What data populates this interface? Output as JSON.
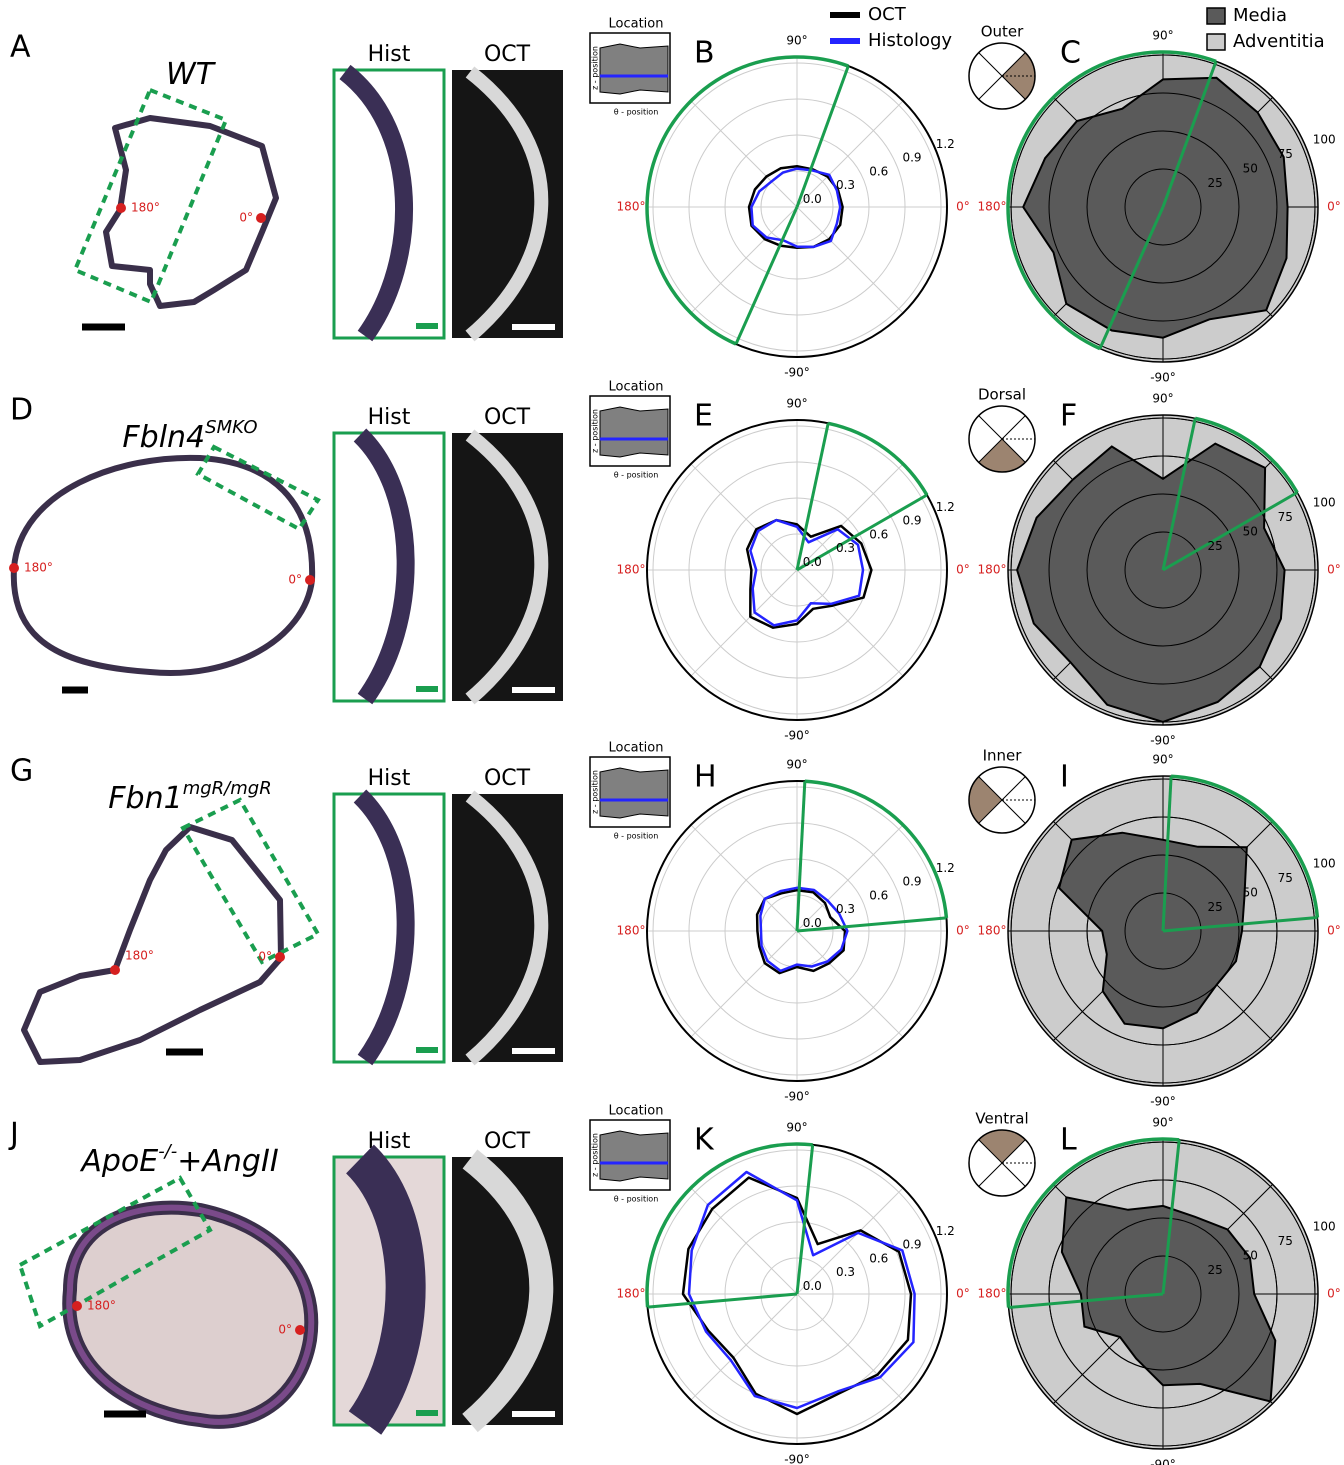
{
  "legends": {
    "thickness": [
      {
        "name": "OCT",
        "color": "#000000"
      },
      {
        "name": "Histology",
        "color": "#2424ff"
      }
    ],
    "layers": [
      {
        "name": "Media",
        "color": "#5a5a5a"
      },
      {
        "name": "Adventitia",
        "color": "#cccccc"
      }
    ]
  },
  "rows": [
    {
      "letter": "A",
      "genotype": {
        "text": "WT"
      },
      "histology_image": {
        "left_label": "180°",
        "right_label": "0°"
      },
      "hist_label": "Hist",
      "oct_label": "OCT",
      "location": {
        "title": "Location",
        "z_label": "z - position",
        "theta_label": "θ - position"
      },
      "orientation": "Outer",
      "thickness_polar": {
        "type": "polar",
        "letter": "B",
        "rlim": [
          0,
          1.25
        ],
        "rticks": [
          {
            "value": 0,
            "label": "0.0"
          },
          0.3,
          0.6,
          0.9,
          1.2
        ],
        "angle_ticks": [
          {
            "value": 90,
            "label": "90°"
          },
          {
            "value": 180,
            "label": "180°"
          },
          {
            "value": -90,
            "label": "-90°"
          },
          {
            "value": 0,
            "label": "0°"
          }
        ],
        "sector": [
          70,
          246
        ],
        "theta": [
          0,
          22.5,
          45,
          67.5,
          90,
          112.5,
          135,
          157.5,
          180,
          202.5,
          225,
          247.5,
          270,
          292.5,
          315,
          337.5
        ],
        "series": [
          {
            "values": [
              0.38,
              0.37,
              0.36,
              0.34,
              0.34,
              0.35,
              0.36,
              0.38,
              0.4,
              0.41,
              0.38,
              0.35,
              0.34,
              0.36,
              0.38,
              0.39
            ]
          },
          {
            "values": [
              0.36,
              0.36,
              0.38,
              0.33,
              0.32,
              0.31,
              0.3,
              0.34,
              0.38,
              0.4,
              0.36,
              0.3,
              0.33,
              0.36,
              0.4,
              0.36
            ]
          }
        ]
      },
      "layer_polar": {
        "type": "polar",
        "letter": "C",
        "rlim": [
          0,
          102
        ],
        "rticks": [
          25,
          50,
          75,
          100
        ],
        "angle_ticks": [
          {
            "value": 90,
            "label": "90°"
          },
          {
            "value": 180,
            "label": "180°"
          },
          {
            "value": -90,
            "label": "-90°"
          },
          {
            "value": 0,
            "label": "0°"
          }
        ],
        "sector": [
          70,
          246
        ],
        "theta": [
          0,
          22.5,
          45,
          67.5,
          90,
          112.5,
          135,
          157.5,
          180,
          202.5,
          225,
          247.5,
          270,
          292.5,
          315,
          337.5
        ],
        "series": [
          {
            "values": [
              82,
              86,
              88,
              92,
              84,
              70,
              80,
              84,
              92,
              78,
              90,
              88,
              86,
              80,
              96,
              88
            ]
          }
        ]
      }
    },
    {
      "letter": "D",
      "genotype": {
        "text": "Fbln4",
        "sup": "SMKO"
      },
      "histology_image": {
        "left_label": "180°",
        "right_label": "0°"
      },
      "hist_label": "Hist",
      "oct_label": "OCT",
      "location": {
        "title": "Location",
        "z_label": "z - position",
        "theta_label": "θ - position"
      },
      "orientation": "Dorsal",
      "thickness_polar": {
        "type": "polar",
        "letter": "E",
        "rlim": [
          0,
          1.25
        ],
        "rticks": [
          {
            "value": 0,
            "label": "0.0"
          },
          0.3,
          0.6,
          0.9,
          1.2
        ],
        "angle_ticks": [
          {
            "value": 90,
            "label": "90°"
          },
          {
            "value": 180,
            "label": "180°"
          },
          {
            "value": -90,
            "label": "-90°"
          },
          {
            "value": 0,
            "label": "0°"
          }
        ],
        "sector": [
          30,
          78
        ],
        "theta": [
          0,
          22.5,
          45,
          67.5,
          90,
          112.5,
          135,
          157.5,
          180,
          202.5,
          225,
          247.5,
          270,
          292.5,
          315,
          337.5
        ],
        "series": [
          {
            "values": [
              0.62,
              0.58,
              0.52,
              0.3,
              0.38,
              0.45,
              0.48,
              0.45,
              0.38,
              0.42,
              0.55,
              0.52,
              0.45,
              0.35,
              0.42,
              0.6
            ]
          },
          {
            "values": [
              0.55,
              0.55,
              0.48,
              0.25,
              0.36,
              0.45,
              0.46,
              0.42,
              0.34,
              0.4,
              0.5,
              0.5,
              0.42,
              0.3,
              0.4,
              0.56
            ]
          }
        ]
      },
      "layer_polar": {
        "type": "polar",
        "letter": "F",
        "rlim": [
          0,
          102
        ],
        "rticks": [
          25,
          50,
          75,
          100
        ],
        "angle_ticks": [
          {
            "value": 90,
            "label": "90°"
          },
          {
            "value": 180,
            "label": "180°"
          },
          {
            "value": -90,
            "label": "-90°"
          },
          {
            "value": 0,
            "label": "0°"
          }
        ],
        "sector": [
          30,
          78
        ],
        "theta": [
          0,
          22.5,
          45,
          67.5,
          90,
          112.5,
          135,
          157.5,
          180,
          202.5,
          225,
          247.5,
          270,
          292.5,
          315,
          337.5
        ],
        "series": [
          {
            "values": [
              80,
              72,
              95,
              90,
              60,
              88,
              84,
              90,
              96,
              92,
              86,
              96,
              100,
              94,
              90,
              84
            ]
          }
        ]
      }
    },
    {
      "letter": "G",
      "genotype": {
        "text": "Fbn1",
        "sup": "mgR/mgR"
      },
      "histology_image": {
        "left_label": "180°",
        "right_label": "0°"
      },
      "hist_label": "Hist",
      "oct_label": "OCT",
      "location": {
        "title": "Location",
        "z_label": "z - position",
        "theta_label": "θ - position"
      },
      "orientation": "Inner",
      "thickness_polar": {
        "type": "polar",
        "letter": "H",
        "rlim": [
          0,
          1.25
        ],
        "rticks": [
          {
            "value": 0,
            "label": "0.0"
          },
          0.3,
          0.6,
          0.9,
          1.2
        ],
        "angle_ticks": [
          {
            "value": 90,
            "label": "90°"
          },
          {
            "value": 180,
            "label": "180°"
          },
          {
            "value": -90,
            "label": "-90°"
          },
          {
            "value": 0,
            "label": "0°"
          }
        ],
        "sector": [
          5,
          87
        ],
        "theta": [
          0,
          22.5,
          45,
          67.5,
          90,
          112.5,
          135,
          157.5,
          180,
          202.5,
          225,
          247.5,
          270,
          292.5,
          315,
          337.5
        ],
        "series": [
          {
            "values": [
              0.4,
              0.3,
              0.33,
              0.35,
              0.34,
              0.34,
              0.38,
              0.36,
              0.33,
              0.34,
              0.38,
              0.38,
              0.3,
              0.36,
              0.38,
              0.42
            ]
          },
          {
            "values": [
              0.42,
              0.38,
              0.36,
              0.37,
              0.36,
              0.36,
              0.38,
              0.33,
              0.3,
              0.32,
              0.35,
              0.36,
              0.28,
              0.32,
              0.36,
              0.4
            ]
          }
        ]
      },
      "layer_polar": {
        "type": "polar",
        "letter": "I",
        "rlim": [
          0,
          102
        ],
        "rticks": [
          25,
          50,
          75,
          100
        ],
        "angle_ticks": [
          {
            "value": 90,
            "label": "90°"
          },
          {
            "value": 180,
            "label": "180°"
          },
          {
            "value": -90,
            "label": "-90°"
          },
          {
            "value": 0,
            "label": "0°"
          }
        ],
        "sector": [
          5,
          87
        ],
        "theta": [
          0,
          22.5,
          45,
          67.5,
          90,
          112.5,
          135,
          157.5,
          180,
          202.5,
          225,
          247.5,
          270,
          292.5,
          315,
          337.5
        ],
        "series": [
          {
            "values": [
              52,
              58,
              78,
              60,
              60,
              70,
              85,
              74,
              40,
              40,
              56,
              66,
              64,
              58,
              50,
              52
            ]
          }
        ]
      }
    },
    {
      "letter": "J",
      "genotype": {
        "text": "ApoE",
        "sup": "-/-",
        "suffix": "+AngII"
      },
      "histology_image": {
        "left_label": "180°",
        "right_label": "0°"
      },
      "hist_label": "Hist",
      "oct_label": "OCT",
      "location": {
        "title": "Location",
        "z_label": "z - position",
        "theta_label": "θ - position"
      },
      "orientation": "Ventral",
      "thickness_polar": {
        "type": "polar",
        "letter": "K",
        "rlim": [
          0,
          1.25
        ],
        "rticks": [
          {
            "value": 0,
            "label": "0.0"
          },
          0.3,
          0.6,
          0.9,
          1.2
        ],
        "angle_ticks": [
          {
            "value": 90,
            "label": "90°"
          },
          {
            "value": 180,
            "label": "180°"
          },
          {
            "value": -90,
            "label": "-90°"
          },
          {
            "value": 0,
            "label": "0°"
          }
        ],
        "sector": [
          84,
          185
        ],
        "theta": [
          0,
          22.5,
          45,
          67.5,
          90,
          112.5,
          135,
          157.5,
          180,
          202.5,
          225,
          247.5,
          270,
          292.5,
          315,
          337.5
        ],
        "series": [
          {
            "values": [
              0.95,
              0.92,
              0.75,
              0.45,
              0.8,
              1.05,
              1.0,
              0.98,
              0.95,
              0.8,
              0.75,
              0.9,
              1.0,
              0.9,
              0.95,
              1.0
            ]
          },
          {
            "values": [
              0.98,
              0.95,
              0.72,
              0.35,
              0.78,
              1.1,
              1.05,
              0.95,
              0.9,
              0.82,
              0.78,
              0.92,
              0.95,
              0.88,
              0.98,
              1.05
            ]
          }
        ]
      },
      "layer_polar": {
        "type": "polar",
        "letter": "L",
        "rlim": [
          0,
          102
        ],
        "rticks": [
          25,
          50,
          75,
          100
        ],
        "angle_ticks": [
          {
            "value": 90,
            "label": "90°"
          },
          {
            "value": 180,
            "label": "180°"
          },
          {
            "value": -90,
            "label": "-90°"
          },
          {
            "value": 0,
            "label": "0°"
          }
        ],
        "sector": [
          84,
          185
        ],
        "theta": [
          0,
          22.5,
          45,
          67.5,
          90,
          112.5,
          135,
          157.5,
          180,
          202.5,
          225,
          247.5,
          270,
          292.5,
          315,
          337.5
        ],
        "series": [
          {
            "values": [
              60,
              62,
              60,
              55,
              58,
              60,
              90,
              72,
              54,
              56,
              40,
              46,
              60,
              64,
              100,
              80
            ]
          }
        ]
      }
    }
  ]
}
